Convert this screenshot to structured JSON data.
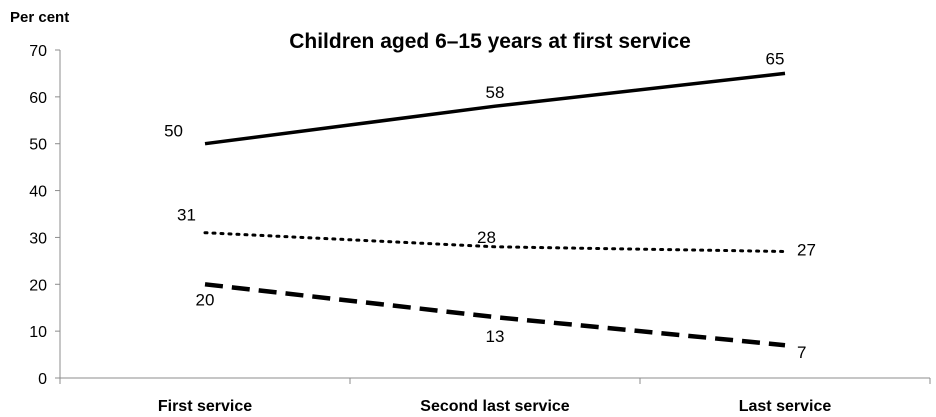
{
  "chart_data": {
    "type": "line",
    "title": "Children  aged 6–15 years at first service",
    "ylabel": "Per cent",
    "xlabel": "",
    "categories": [
      "First service",
      "Second last service",
      "Last service"
    ],
    "ylim": [
      0,
      70
    ],
    "yticks": [
      "0",
      "10",
      "20",
      "30",
      "40",
      "50",
      "60",
      "70"
    ],
    "grid": false,
    "series": [
      {
        "values": [
          50,
          58,
          65
        ],
        "labels": [
          "50",
          "58",
          "65"
        ],
        "style": "solid",
        "color": "#000000"
      },
      {
        "values": [
          31,
          28,
          27
        ],
        "labels": [
          "31",
          "28",
          "27"
        ],
        "style": "dotted",
        "color": "#000000"
      },
      {
        "values": [
          20,
          13,
          7
        ],
        "labels": [
          "20",
          "13",
          "7"
        ],
        "style": "dashed",
        "color": "#000000"
      }
    ]
  }
}
